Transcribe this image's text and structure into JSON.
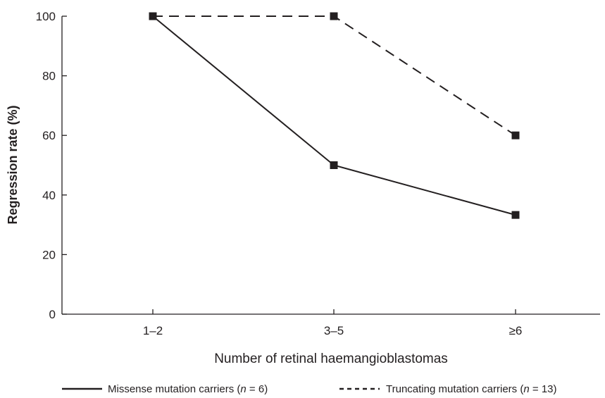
{
  "chart_data": {
    "type": "line",
    "xlabel": "Number of retinal haemangioblastomas",
    "ylabel": "Regression rate (%)",
    "categories": [
      "1–2",
      "3–5",
      "≥6"
    ],
    "ylim": [
      0,
      100
    ],
    "yticks": [
      0,
      20,
      40,
      60,
      80,
      100
    ],
    "grid": false,
    "legend_position": "bottom",
    "series": [
      {
        "name": "Missense mutation carriers",
        "n_value": "6",
        "values": [
          100,
          50,
          33.3
        ],
        "style": "solid",
        "color": "#231f20"
      },
      {
        "name": "Truncating mutation carriers",
        "n_value": "13",
        "values": [
          100,
          100,
          60
        ],
        "style": "dashed",
        "color": "#231f20"
      }
    ]
  }
}
